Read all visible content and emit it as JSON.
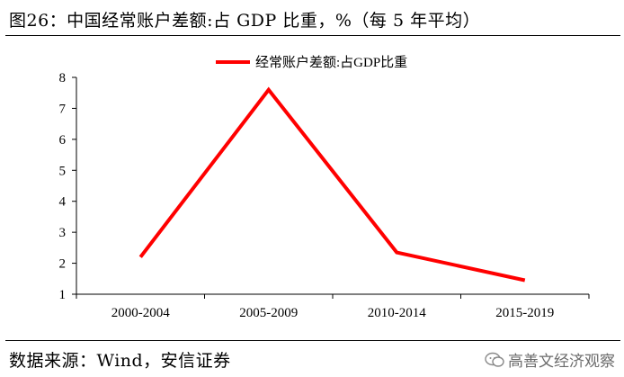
{
  "title": "图26：中国经常账户差额:占 GDP 比重，%（每 5 年平均）",
  "source": "数据来源：Wind，安信证券",
  "watermark": "高善文经济观察",
  "colors": {
    "series": "#ff0000",
    "axis": "#000000"
  },
  "chart_data": {
    "type": "line",
    "categories": [
      "2000-2004",
      "2005-2009",
      "2010-2014",
      "2015-2019"
    ],
    "series": [
      {
        "name": "经常账户差额:占GDP比重",
        "values": [
          2.2,
          7.6,
          2.35,
          1.45
        ]
      }
    ],
    "ylim": [
      1,
      8
    ],
    "yticks": [
      1,
      2,
      3,
      4,
      5,
      6,
      7,
      8
    ],
    "xlabel": "",
    "ylabel": "",
    "legend_position": "top-center",
    "grid": false
  }
}
